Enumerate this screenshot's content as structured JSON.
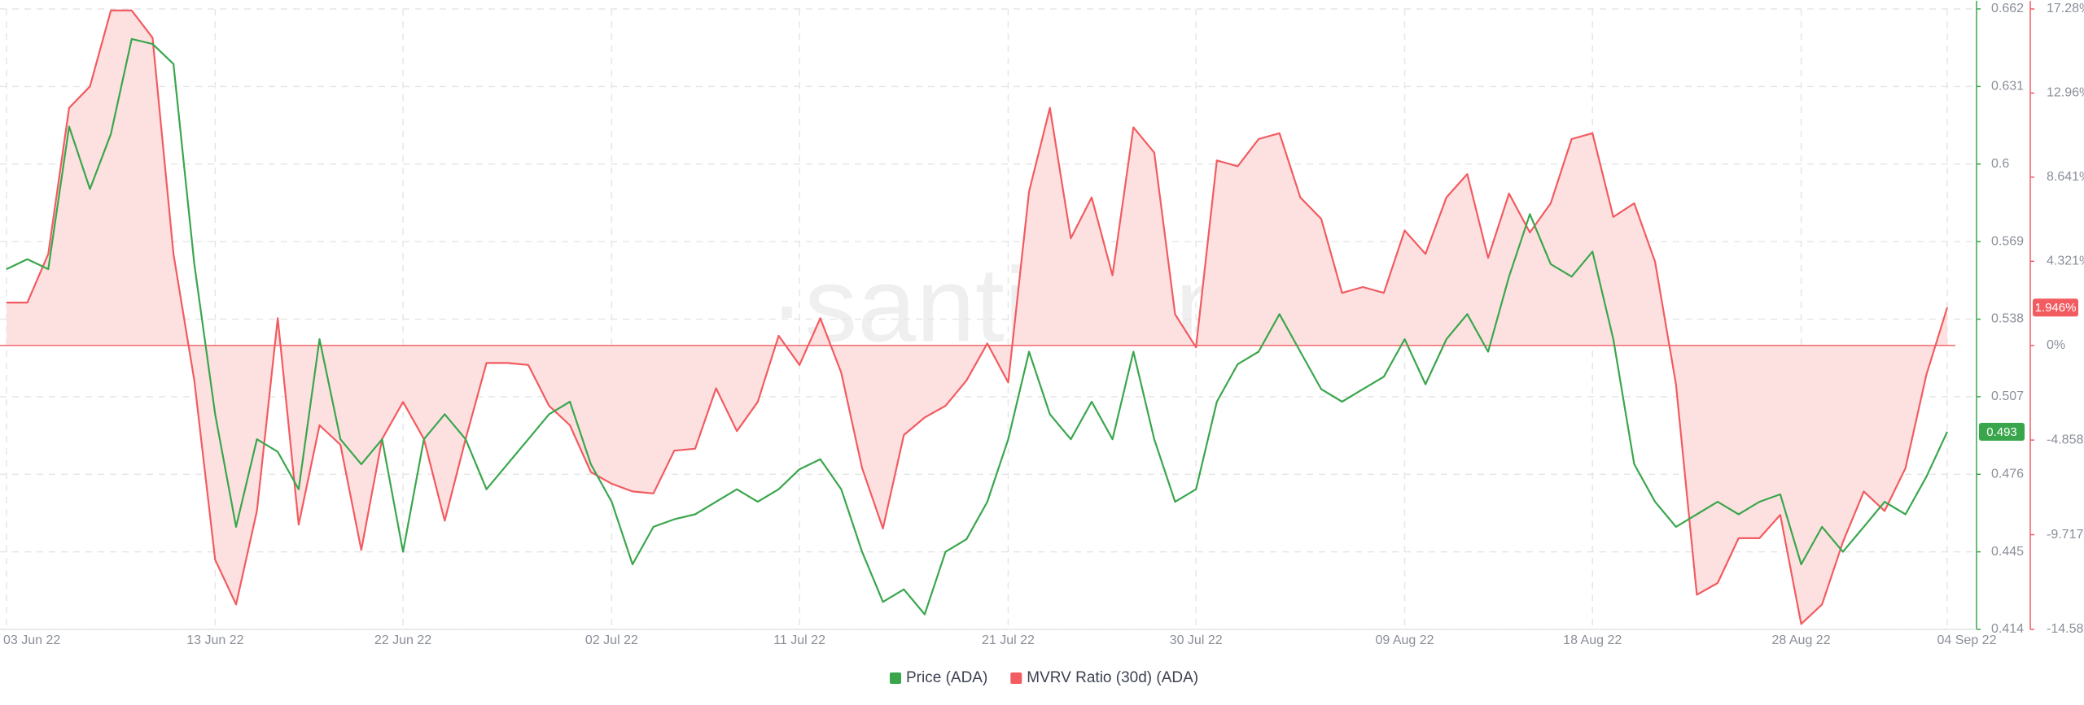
{
  "chart_data": {
    "type": "line",
    "watermark": "·santiment·",
    "categories": [
      "03 Jun 22",
      "04 Jun 22",
      "05 Jun 22",
      "06 Jun 22",
      "07 Jun 22",
      "08 Jun 22",
      "09 Jun 22",
      "10 Jun 22",
      "11 Jun 22",
      "12 Jun 22",
      "13 Jun 22",
      "14 Jun 22",
      "15 Jun 22",
      "16 Jun 22",
      "17 Jun 22",
      "18 Jun 22",
      "19 Jun 22",
      "20 Jun 22",
      "21 Jun 22",
      "22 Jun 22",
      "23 Jun 22",
      "24 Jun 22",
      "25 Jun 22",
      "26 Jun 22",
      "27 Jun 22",
      "28 Jun 22",
      "29 Jun 22",
      "30 Jun 22",
      "01 Jul 22",
      "02 Jul 22",
      "03 Jul 22",
      "04 Jul 22",
      "05 Jul 22",
      "06 Jul 22",
      "07 Jul 22",
      "08 Jul 22",
      "09 Jul 22",
      "10 Jul 22",
      "11 Jul 22",
      "12 Jul 22",
      "13 Jul 22",
      "14 Jul 22",
      "15 Jul 22",
      "16 Jul 22",
      "17 Jul 22",
      "18 Jul 22",
      "19 Jul 22",
      "20 Jul 22",
      "21 Jul 22",
      "22 Jul 22",
      "23 Jul 22",
      "24 Jul 22",
      "25 Jul 22",
      "26 Jul 22",
      "27 Jul 22",
      "28 Jul 22",
      "29 Jul 22",
      "30 Jul 22",
      "31 Jul 22",
      "01 Aug 22",
      "02 Aug 22",
      "03 Aug 22",
      "04 Aug 22",
      "05 Aug 22",
      "06 Aug 22",
      "07 Aug 22",
      "08 Aug 22",
      "09 Aug 22",
      "10 Aug 22",
      "11 Aug 22",
      "12 Aug 22",
      "13 Aug 22",
      "14 Aug 22",
      "15 Aug 22",
      "16 Aug 22",
      "17 Aug 22",
      "18 Aug 22",
      "19 Aug 22",
      "20 Aug 22",
      "21 Aug 22",
      "22 Aug 22",
      "23 Aug 22",
      "24 Aug 22",
      "25 Aug 22",
      "26 Aug 22",
      "27 Aug 22",
      "28 Aug 22",
      "29 Aug 22",
      "30 Aug 22",
      "31 Aug 22",
      "01 Sep 22",
      "02 Sep 22",
      "03 Sep 22",
      "04 Sep 22"
    ],
    "xticks": [
      "03 Jun 22",
      "13 Jun 22",
      "22 Jun 22",
      "02 Jul 22",
      "11 Jul 22",
      "21 Jul 22",
      "30 Jul 22",
      "09 Aug 22",
      "18 Aug 22",
      "28 Aug 22",
      "04 Sep 22"
    ],
    "series": [
      {
        "name": "Price (ADA)",
        "color": "#3aa64c",
        "last_label": "0.493",
        "values": [
          0.558,
          0.562,
          0.558,
          0.615,
          0.59,
          0.612,
          0.65,
          0.648,
          0.64,
          0.56,
          0.5,
          0.455,
          0.49,
          0.485,
          0.47,
          0.53,
          0.49,
          0.48,
          0.49,
          0.445,
          0.49,
          0.5,
          0.49,
          0.47,
          0.48,
          0.49,
          0.5,
          0.505,
          0.48,
          0.465,
          0.44,
          0.455,
          0.458,
          0.46,
          0.465,
          0.47,
          0.465,
          0.47,
          0.478,
          0.482,
          0.47,
          0.445,
          0.425,
          0.43,
          0.42,
          0.445,
          0.45,
          0.465,
          0.49,
          0.525,
          0.5,
          0.49,
          0.505,
          0.49,
          0.525,
          0.49,
          0.465,
          0.47,
          0.505,
          0.52,
          0.525,
          0.54,
          0.525,
          0.51,
          0.505,
          0.51,
          0.515,
          0.53,
          0.512,
          0.53,
          0.54,
          0.525,
          0.555,
          0.58,
          0.56,
          0.555,
          0.565,
          0.53,
          0.48,
          0.465,
          0.455,
          0.46,
          0.465,
          0.46,
          0.465,
          0.468,
          0.44,
          0.455,
          0.445,
          0.455,
          0.465,
          0.46,
          0.475,
          0.493
        ]
      },
      {
        "name": "MVRV Ratio (30d) (ADA)",
        "color": "#f25b60",
        "axis": "y2",
        "last_label": "1.946%",
        "values": [
          2.2,
          2.2,
          4.7,
          12.2,
          13.3,
          17.2,
          17.2,
          15.8,
          4.7,
          -1.8,
          -11,
          -13.3,
          -8.5,
          1.4,
          -9.2,
          -4.1,
          -5.1,
          -10.5,
          -4.8,
          -2.9,
          -4.8,
          -9,
          -4.8,
          -0.9,
          -0.9,
          -1.0,
          -3.1,
          -4.1,
          -6.5,
          -7.1,
          -7.5,
          -7.6,
          -5.4,
          -5.3,
          -2.2,
          -4.4,
          -2.9,
          0.5,
          -1.0,
          1.4,
          -1.4,
          -6.3,
          -9.4,
          -4.6,
          -3.7,
          -3.1,
          -1.8,
          0.1,
          -1.9,
          7.9,
          12.2,
          5.5,
          7.6,
          3.6,
          11.2,
          9.9,
          1.6,
          -0.1,
          9.5,
          9.2,
          10.6,
          10.9,
          7.6,
          6.5,
          2.7,
          3.0,
          2.7,
          5.9,
          4.7,
          7.6,
          8.8,
          4.5,
          7.8,
          5.8,
          7.3,
          10.6,
          10.9,
          6.6,
          7.3,
          4.3,
          -2.0,
          -12.8,
          -12.2,
          -9.9,
          -9.9,
          -8.7,
          -14.3,
          -13.3,
          -10.1,
          -7.5,
          -8.5,
          -6.3,
          -1.5,
          1.946
        ]
      }
    ],
    "ylim": [
      0.414,
      0.662
    ],
    "yticks": [
      0.414,
      0.445,
      0.476,
      0.507,
      0.538,
      0.569,
      0.6,
      0.631,
      0.662
    ],
    "y2lim": [
      -14.58,
      17.28
    ],
    "y2ticks": [
      {
        "value": -14.58,
        "label": "-14.58%"
      },
      {
        "value": -9.717,
        "label": "-9.717%"
      },
      {
        "value": -4.858,
        "label": "-4.858%"
      },
      {
        "value": 0,
        "label": "0%"
      },
      {
        "value": 4.321,
        "label": "4.321%"
      },
      {
        "value": 8.641,
        "label": "8.641%"
      },
      {
        "value": 12.96,
        "label": "12.96%"
      },
      {
        "value": 17.28,
        "label": "17.28%"
      }
    ],
    "grid": true,
    "legend": "bottom",
    "area_fill": "#fde1e1"
  }
}
